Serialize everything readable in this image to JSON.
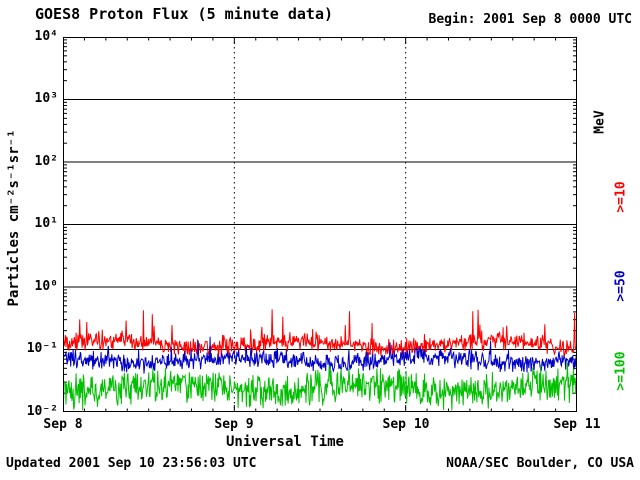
{
  "header": {
    "title": "GOES8 Proton Flux (5 minute data)",
    "begin": "Begin: 2001 Sep 8 0000 UTC"
  },
  "footer": {
    "updated": "Updated 2001 Sep 10 23:56:03 UTC",
    "credit": "NOAA/SEC Boulder, CO USA"
  },
  "chart_data": {
    "type": "line",
    "title": "GOES8 Proton Flux (5 minute data)",
    "xlabel": "Universal Time",
    "ylabel": "Particles cm⁻²s⁻¹sr⁻¹",
    "right_axis_title": "MeV",
    "x_tick_labels": [
      "Sep 8",
      "Sep 9",
      "Sep 10",
      "Sep 11"
    ],
    "y_tick_labels": [
      "10⁴",
      "10³",
      "10²",
      "10¹",
      "10⁰",
      "10⁻¹",
      "10⁻²"
    ],
    "ylim_log10": [
      -2,
      4
    ],
    "x_range_days": 3,
    "sample_interval_minutes": 5,
    "points_per_series": 864,
    "grid": {
      "horizontal": "solid-every-decade",
      "vertical": "dashed-at-day-boundaries"
    },
    "series": [
      {
        "name": ">=10",
        "color": "#ff0000",
        "approx_flux_range": [
          0.05,
          0.45
        ],
        "noise": {
          "log10_mean": -0.92,
          "log10_jitter": 0.17,
          "slow_amp": 0.06,
          "spike_prob": 0.03,
          "spike_log10": 0.5
        }
      },
      {
        "name": ">=50",
        "color": "#0000c8",
        "approx_flux_range": [
          0.02,
          0.18
        ],
        "noise": {
          "log10_mean": -1.17,
          "log10_jitter": 0.18,
          "slow_amp": 0.05,
          "spike_prob": 0.02,
          "spike_log10": 0.35
        }
      },
      {
        "name": ">=100",
        "color": "#00c000",
        "approx_flux_range": [
          0.008,
          0.09
        ],
        "noise": {
          "log10_mean": -1.62,
          "log10_jitter": 0.32,
          "slow_amp": 0.06,
          "spike_prob": 0.02,
          "spike_log10": 0.3
        }
      }
    ]
  }
}
